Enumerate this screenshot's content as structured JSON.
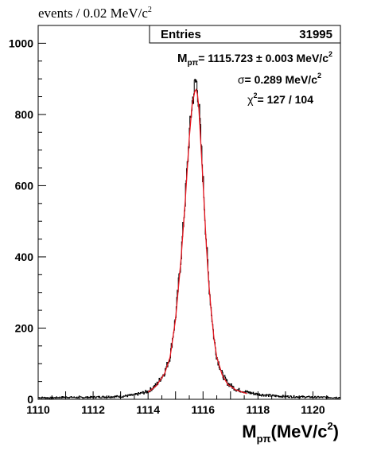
{
  "chart_data": {
    "type": "line",
    "ylabel": "events / 0.02 MeV/c",
    "ylabel_sup": "2",
    "xlabel_main": "M",
    "xlabel_sub": "pπ",
    "xlabel_unit": "(MeV/c",
    "xlabel_sup": "2",
    "xlabel_close": ")",
    "xlim": [
      1110,
      1121
    ],
    "ylim": [
      0,
      1050
    ],
    "x_ticks": [
      1110,
      1112,
      1114,
      1116,
      1118,
      1120
    ],
    "y_ticks": [
      0,
      200,
      400,
      600,
      800,
      1000
    ],
    "stats": {
      "entries_label": "Entries",
      "entries_value": "31995",
      "mass_symbol": "M",
      "mass_sub": "pπ",
      "mass_text": "= 1115.723 ± 0.003 MeV/c",
      "mass_sup": "2",
      "sigma_symbol": "σ",
      "sigma_text": "= 0.289 MeV/c",
      "sigma_sup": "2",
      "chi_symbol": "χ",
      "chi_sup": "2",
      "chi_text": "= 127 / 104"
    },
    "series": [
      {
        "kind": "histogram",
        "color": "#000000",
        "x": [
          1110.0,
          1110.5,
          1111.0,
          1111.5,
          1112.0,
          1112.5,
          1113.0,
          1113.5,
          1114.0,
          1114.3,
          1114.6,
          1114.8,
          1115.0,
          1115.2,
          1115.35,
          1115.5,
          1115.6,
          1115.7,
          1115.75,
          1115.8,
          1115.85,
          1115.9,
          1116.0,
          1116.1,
          1116.2,
          1116.3,
          1116.4,
          1116.5,
          1116.7,
          1116.9,
          1117.2,
          1117.6,
          1118.0,
          1118.5,
          1119.0,
          1120.0,
          1121.0
        ],
        "y": [
          5,
          4,
          6,
          5,
          6,
          7,
          8,
          12,
          22,
          40,
          75,
          120,
          230,
          400,
          560,
          740,
          830,
          880,
          895,
          870,
          830,
          760,
          620,
          470,
          340,
          250,
          170,
          120,
          70,
          45,
          28,
          20,
          14,
          10,
          8,
          6,
          5
        ]
      },
      {
        "kind": "fit",
        "color": "#e8141e",
        "x": [
          1114.0,
          1114.3,
          1114.6,
          1114.8,
          1115.0,
          1115.2,
          1115.35,
          1115.5,
          1115.6,
          1115.7,
          1115.75,
          1115.8,
          1115.85,
          1115.9,
          1116.0,
          1116.1,
          1116.2,
          1116.3,
          1116.4,
          1116.5,
          1116.7,
          1116.9,
          1117.2,
          1117.6
        ],
        "y": [
          20,
          38,
          72,
          118,
          225,
          395,
          555,
          735,
          825,
          865,
          870,
          855,
          815,
          745,
          610,
          460,
          335,
          245,
          170,
          118,
          68,
          42,
          26,
          16
        ]
      }
    ]
  }
}
